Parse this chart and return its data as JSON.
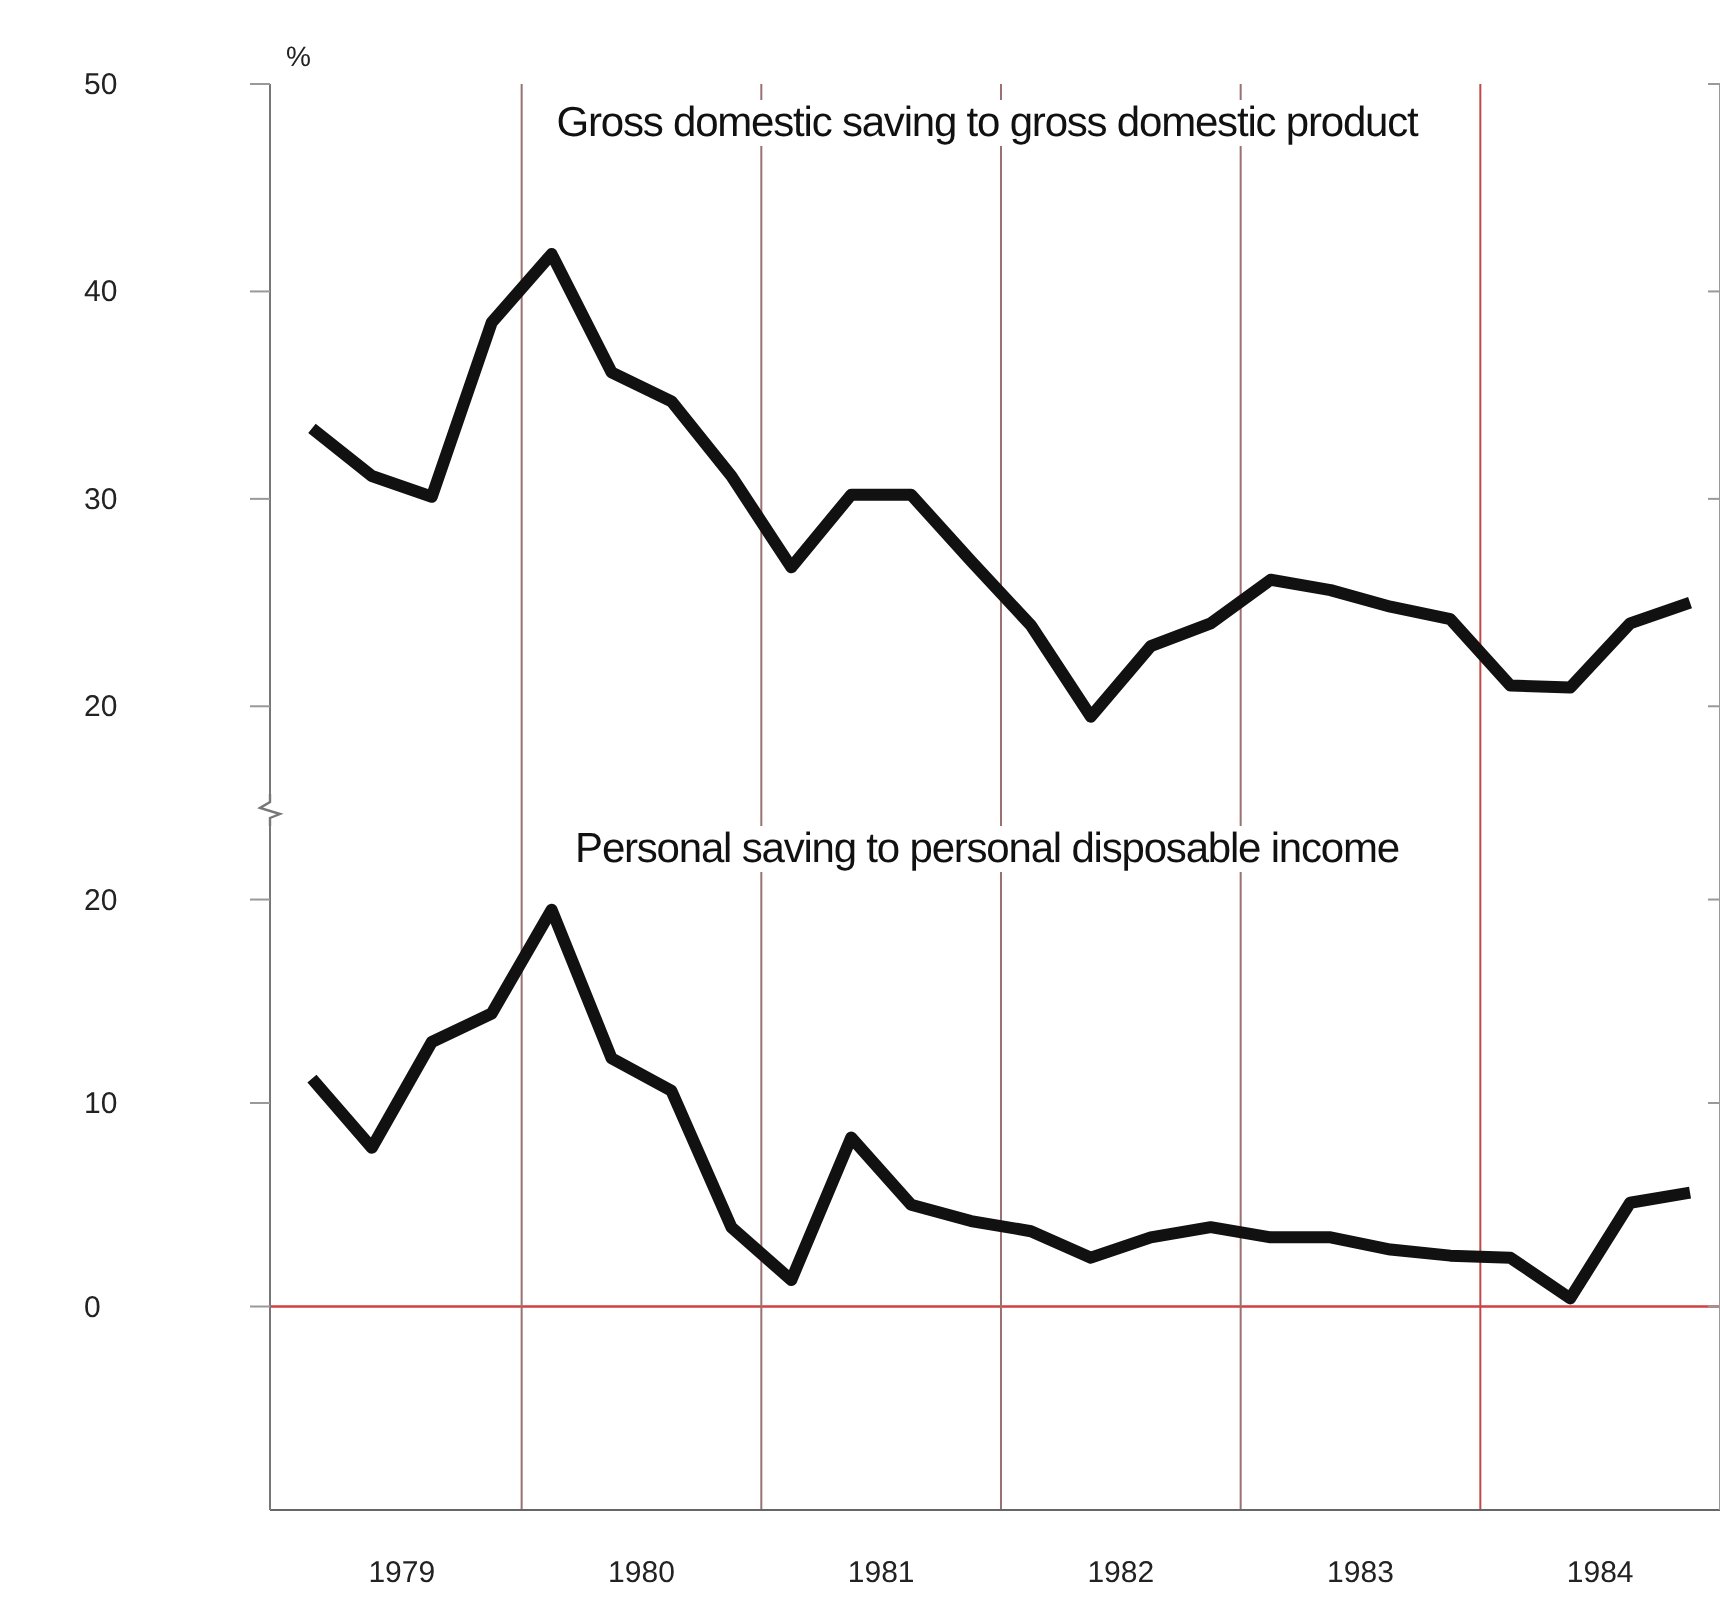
{
  "chart_data": [
    {
      "type": "line",
      "title": "Gross domestic saving to gross domestic product",
      "ylabel": "%",
      "x": [
        1979.125,
        1979.375,
        1979.625,
        1979.875,
        1980.125,
        1980.375,
        1980.625,
        1980.875,
        1981.125,
        1981.375,
        1981.625,
        1981.875,
        1982.125,
        1982.375,
        1982.625,
        1982.875,
        1983.125,
        1983.375,
        1983.625,
        1983.875,
        1984.125,
        1984.375,
        1984.625,
        1984.875
      ],
      "series": [
        {
          "color": "#111111",
          "values": [
            33.4,
            31.1,
            30.1,
            38.5,
            41.8,
            36.1,
            34.7,
            31.1,
            26.7,
            30.2,
            30.2,
            27.0,
            23.9,
            19.5,
            22.9,
            24.0,
            26.1,
            25.6,
            24.8,
            24.2,
            21.0,
            20.9,
            24.0,
            25.0
          ]
        }
      ],
      "xlim": [
        1978.95,
        1985
      ],
      "ylim": [
        15,
        50
      ],
      "yticks": [
        20,
        30,
        40,
        50
      ],
      "tick_labels": "y",
      "grid": false,
      "marker": "none",
      "line_style": "solid",
      "ref_lines": [
        {
          "axis": "x",
          "value": 1980,
          "color": "#9a7070"
        },
        {
          "axis": "x",
          "value": 1981,
          "color": "#9a7070"
        },
        {
          "axis": "x",
          "value": 1982,
          "color": "#9a7070"
        },
        {
          "axis": "x",
          "value": 1983,
          "color": "#9a7070"
        },
        {
          "axis": "x",
          "value": 1984,
          "color": "#c04848"
        }
      ]
    },
    {
      "type": "line",
      "title": "Personal saving to personal disposable income",
      "x": [
        1979.125,
        1979.375,
        1979.625,
        1979.875,
        1980.125,
        1980.375,
        1980.625,
        1980.875,
        1981.125,
        1981.375,
        1981.625,
        1981.875,
        1982.125,
        1982.375,
        1982.625,
        1982.875,
        1983.125,
        1983.375,
        1983.625,
        1983.875,
        1984.125,
        1984.375,
        1984.625,
        1984.875
      ],
      "series": [
        {
          "color": "#111111",
          "values": [
            11.2,
            7.8,
            13.0,
            14.4,
            19.5,
            12.2,
            10.6,
            3.9,
            1.3,
            8.3,
            5.0,
            4.2,
            3.7,
            2.4,
            3.4,
            3.9,
            3.4,
            3.4,
            2.8,
            2.5,
            2.4,
            0.4,
            5.1,
            5.6
          ]
        }
      ],
      "xlim": [
        1978.95,
        1985
      ],
      "ylim": [
        -10,
        24.4
      ],
      "yticks": [
        0,
        10,
        20
      ],
      "xticks": [
        {
          "value": 1979.5,
          "label": "1979"
        },
        {
          "value": 1980.5,
          "label": "1980"
        },
        {
          "value": 1981.5,
          "label": "1981"
        },
        {
          "value": 1982.5,
          "label": "1982"
        },
        {
          "value": 1983.5,
          "label": "1983"
        },
        {
          "value": 1984.5,
          "label": "1984"
        }
      ],
      "grid": false,
      "marker": "none",
      "line_style": "solid",
      "ref_lines": [
        {
          "axis": "y",
          "value": 0,
          "color": "#d04040"
        },
        {
          "axis": "x",
          "value": 1980,
          "color": "#9a7070"
        },
        {
          "axis": "x",
          "value": 1981,
          "color": "#9a7070"
        },
        {
          "axis": "x",
          "value": 1982,
          "color": "#9a7070"
        },
        {
          "axis": "x",
          "value": 1983,
          "color": "#9a7070"
        },
        {
          "axis": "x",
          "value": 1984,
          "color": "#c04848"
        }
      ]
    }
  ]
}
